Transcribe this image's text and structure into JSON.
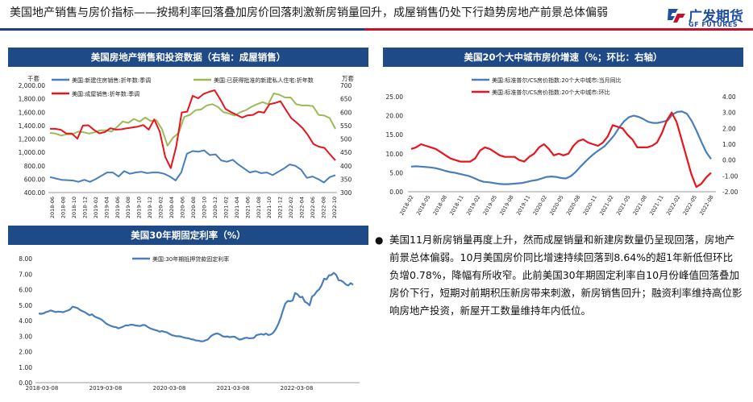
{
  "page": {
    "title": "美国地产销售与房价指标——按揭利率回落叠加房价回落刺激新房销量回升，成屋销售仍处下行趋势房地产前景总体偏弱",
    "logo_cn": "广发期货",
    "logo_en": "GF FUTURES",
    "colors": {
      "brand_blue": "#1e4a87",
      "brand_red": "#c8102e"
    }
  },
  "panels": {
    "sales_title": "美国房地产销售和投资数据（右轴：成屋销售）",
    "hpi_title": "美国20个大中城市房价增速（%；环比：右轴）",
    "rate_title": "美国30年期固定利率（%）"
  },
  "bullet": {
    "text": "美国11月新房销量再度上升，然而成屋销量和新建房数量仍呈现回落，房地产前景总体偏弱。10月美国房价同比增速持续回落到8.64%的超1年新低但环比负增0.78%，降幅有所收窄。此前美国30年期固定利率自10月份峰值回落叠加房价下行，短期对前期积压新房带来刺激，新房销售回升；融资利率维持高位影响房地产投资，新屋开工数量维持年内低位。"
  },
  "chart_data": [
    {
      "type": "line",
      "title": "美国房地产销售和投资数据（右轴：成屋销售）",
      "left_unit": "千套",
      "right_unit": "万套",
      "ylim_left": [
        400,
        2000
      ],
      "ylim_right": [
        300,
        700
      ],
      "y_ticks_left": [
        "400.00",
        "600.00",
        "800.00",
        "1,000.00",
        "1,200.00",
        "1,400.00",
        "1,600.00",
        "1,800.00",
        "2,000.00"
      ],
      "y_ticks_right": [
        "300",
        "350",
        "400",
        "450",
        "500",
        "550",
        "600",
        "650",
        "700"
      ],
      "x_ticks": [
        "2018-06",
        "2018-08",
        "2018-10",
        "2018-12",
        "2019-02",
        "2019-04",
        "2019-06",
        "2019-08",
        "2019-10",
        "2019-12",
        "2020-02",
        "2020-04",
        "2020-06",
        "2020-08",
        "2020-10",
        "2020-12",
        "2021-02",
        "2021-04",
        "2021-06",
        "2021-08",
        "2021-10",
        "2021-12",
        "2022-02",
        "2022-04",
        "2022-06",
        "2022-08",
        "2022-10"
      ],
      "series": [
        {
          "name": "美国:新建住房销售:折年数:季调",
          "color": "#4a7ebb",
          "axis": "left",
          "values": [
            631,
            610,
            590,
            585,
            580,
            560,
            590,
            560,
            600,
            650,
            700,
            700,
            640,
            720,
            680,
            700,
            710,
            690,
            700,
            700,
            680,
            640,
            580,
            700,
            980,
            1020,
            1010,
            1030,
            960,
            970,
            880,
            860,
            890,
            820,
            760,
            700,
            720,
            690,
            700,
            660,
            710,
            760,
            820,
            800,
            740,
            620,
            640,
            600,
            550,
            630,
            660
          ]
        },
        {
          "name": "美国:已获得批准的新建私人住宅:折年数",
          "color": "#9bbb59",
          "axis": "left",
          "values": [
            1290,
            1280,
            1250,
            1270,
            1270,
            1310,
            1300,
            1280,
            1300,
            1330,
            1330,
            1310,
            1380,
            1460,
            1440,
            1500,
            1460,
            1520,
            1470,
            1480,
            1350,
            1100,
            1220,
            1290,
            1530,
            1560,
            1630,
            1640,
            1700,
            1720,
            1680,
            1600,
            1580,
            1550,
            1600,
            1630,
            1680,
            1720,
            1750,
            1720,
            1880,
            1860,
            1820,
            1820,
            1720,
            1700,
            1700,
            1690,
            1560,
            1550,
            1510,
            1350
          ]
        },
        {
          "name": "美国:成屋销售:折年数:季调",
          "color": "#e8141e",
          "axis": "right",
          "values": [
            538,
            538,
            534,
            520,
            520,
            501,
            550,
            551,
            534,
            521,
            526,
            540,
            535,
            536,
            540,
            543,
            546,
            552,
            535,
            573,
            527,
            433,
            391,
            472,
            599,
            602,
            661,
            652,
            668,
            676,
            682,
            649,
            612,
            600,
            590,
            580,
            588,
            590,
            602,
            598,
            630,
            634,
            641,
            608,
            577,
            560,
            541,
            514,
            481,
            471,
            467,
            443,
            420
          ]
        }
      ]
    },
    {
      "type": "line",
      "title": "美国20个大中城市房价增速（%；环比：右轴）",
      "ylim_left": [
        0,
        25
      ],
      "ylim_right": [
        -2,
        4
      ],
      "y_ticks_left": [
        "0.00",
        "5.00",
        "10.00",
        "15.00",
        "20.00",
        "25.00"
      ],
      "y_ticks_right": [
        "-2.00",
        "-1.00",
        "0.00",
        "1.00",
        "2.00",
        "3.00",
        "4.00"
      ],
      "x_ticks": [
        "2018-02",
        "2018-05",
        "2018-08",
        "2018-11",
        "2019-02",
        "2019-05",
        "2019-08",
        "2019-11",
        "2020-02",
        "2020-05",
        "2020-08",
        "2020-11",
        "2021-02",
        "2021-05",
        "2021-08",
        "2021-11",
        "2022-02",
        "2022-05",
        "2022-08"
      ],
      "series": [
        {
          "name": "美国:标准普尔/CS房价指数:20个大中城市:当月同比",
          "color": "#4a7ebb",
          "axis": "left",
          "values": [
            6.6,
            6.7,
            6.6,
            6.5,
            6.4,
            6.2,
            5.9,
            5.5,
            5.2,
            5.0,
            4.7,
            4.4,
            4.1,
            3.6,
            3.0,
            2.6,
            2.5,
            2.3,
            2.1,
            2.0,
            2.0,
            2.1,
            2.2,
            2.3,
            2.6,
            2.9,
            3.1,
            3.5,
            3.9,
            4.0,
            3.9,
            3.6,
            3.5,
            4.1,
            5.2,
            6.6,
            7.9,
            9.1,
            10.2,
            11.1,
            12.0,
            13.4,
            14.9,
            16.9,
            18.5,
            19.6,
            20.0,
            19.7,
            19.1,
            18.4,
            18.1,
            18.1,
            18.4,
            18.7,
            20.3,
            21.0,
            21.1,
            20.5,
            18.6,
            16.0,
            13.1,
            10.4,
            8.6
          ]
        },
        {
          "name": "美国:标准普尔/CS房价指数:20个大中城市:环比",
          "color": "#e8141e",
          "axis": "right",
          "values": [
            0.7,
            0.8,
            1.0,
            0.9,
            0.8,
            0.7,
            0.5,
            0.3,
            0.1,
            0.0,
            -0.1,
            -0.1,
            -0.1,
            0.1,
            0.6,
            0.8,
            0.7,
            0.5,
            0.3,
            0.2,
            0.2,
            0.2,
            0.0,
            -0.1,
            0.2,
            0.4,
            0.8,
            1.0,
            0.7,
            0.3,
            0.4,
            0.3,
            0.4,
            0.9,
            1.2,
            1.3,
            1.1,
            1.0,
            0.9,
            1.1,
            1.5,
            2.2,
            2.1,
            2.0,
            1.6,
            1.3,
            0.8,
            0.8,
            0.8,
            0.9,
            1.1,
            1.7,
            2.5,
            3.0,
            2.4,
            1.3,
            0.2,
            -0.9,
            -1.7,
            -1.5,
            -1.1,
            -0.8
          ]
        }
      ]
    },
    {
      "type": "line",
      "title": "美国30年期固定利率（%）",
      "ylim": [
        0,
        8
      ],
      "y_ticks": [
        "0.00",
        "1.00",
        "2.00",
        "3.00",
        "4.00",
        "5.00",
        "6.00",
        "7.00",
        "8.00"
      ],
      "x_ticks": [
        "2018-03-08",
        "2019-03-08",
        "2020-03-08",
        "2021-03-08",
        "2022-03-08"
      ],
      "series": [
        {
          "name": "美国:30年期抵押贷款固定利率",
          "color": "#4a7ebb",
          "values": [
            4.46,
            4.44,
            4.47,
            4.55,
            4.59,
            4.66,
            4.61,
            4.55,
            4.58,
            4.57,
            4.54,
            4.6,
            4.65,
            4.72,
            4.9,
            4.86,
            4.81,
            4.7,
            4.62,
            4.55,
            4.45,
            4.35,
            4.41,
            4.28,
            4.2,
            4.14,
            4.07,
            3.93,
            3.8,
            3.72,
            3.65,
            3.6,
            3.58,
            3.5,
            3.56,
            3.62,
            3.7,
            3.69,
            3.74,
            3.73,
            3.69,
            3.67,
            3.65,
            3.72,
            3.71,
            3.6,
            3.51,
            3.45,
            3.4,
            3.36,
            3.29,
            3.33,
            3.28,
            3.24,
            3.15,
            3.07,
            3.03,
            2.99,
            3.0,
            2.96,
            2.91,
            2.88,
            2.86,
            2.8,
            2.78,
            2.72,
            2.71,
            2.67,
            2.67,
            2.73,
            2.79,
            2.97,
            3.08,
            3.15,
            3.17,
            3.1,
            3.0,
            2.96,
            2.98,
            2.93,
            2.96,
            2.96,
            2.87,
            2.78,
            2.8,
            2.88,
            2.9,
            2.86,
            2.87,
            2.89,
            3.06,
            3.1,
            3.14,
            3.09,
            3.17,
            3.07,
            3.11,
            3.22,
            3.45,
            3.76,
            4.16,
            4.67,
            5.11,
            5.27,
            5.25,
            5.3,
            5.78,
            5.7,
            5.51,
            5.54,
            5.22,
            5.13,
            4.99,
            5.55,
            5.66,
            5.89,
            6.02,
            6.29,
            6.7,
            6.66,
            6.92,
            6.94,
            7.08,
            6.95,
            6.61,
            6.58,
            6.49,
            6.33,
            6.27,
            6.42,
            6.31
          ]
        }
      ]
    }
  ]
}
